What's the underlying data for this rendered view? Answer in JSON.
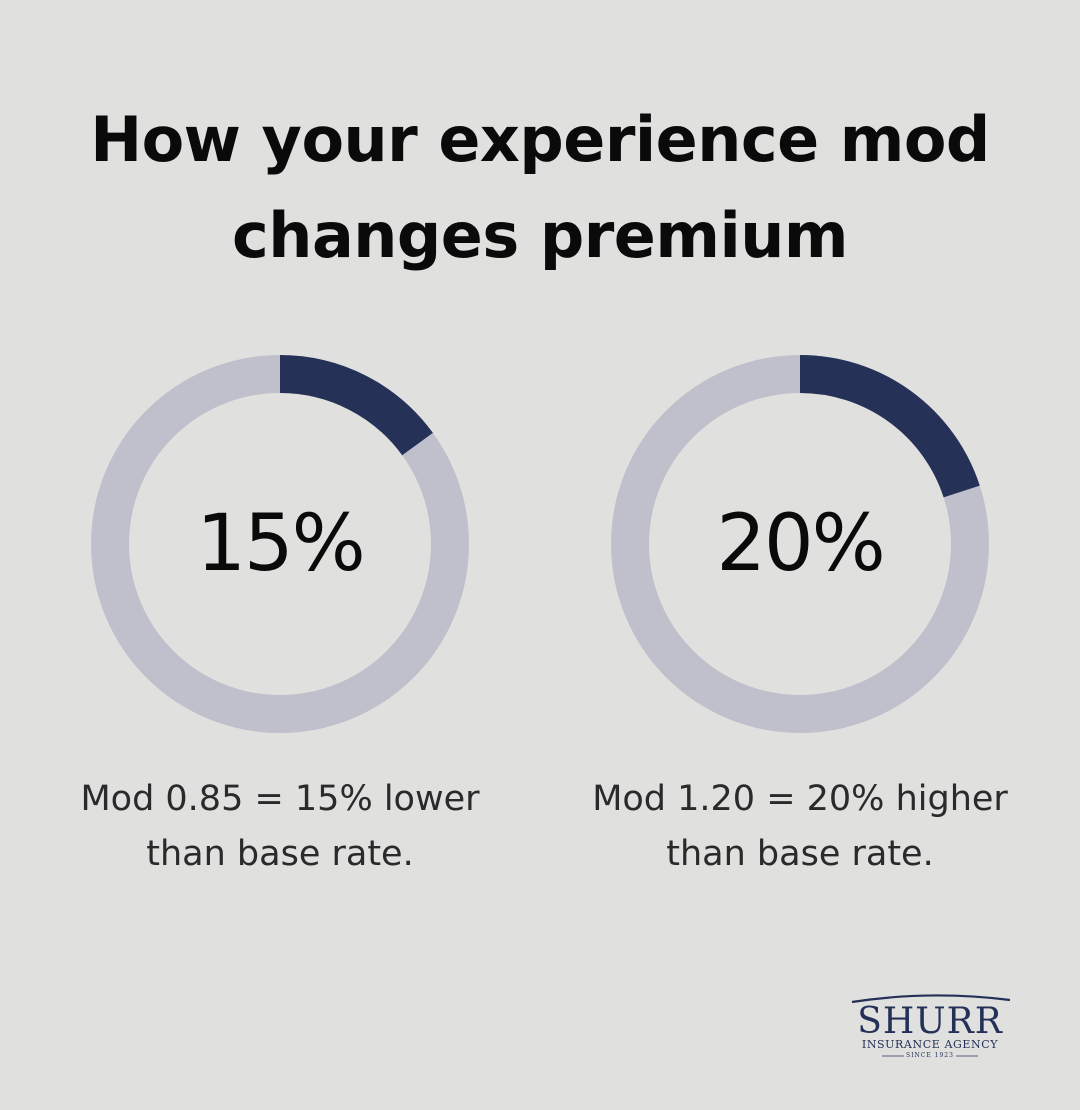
{
  "title": {
    "line1": "How your experience mod",
    "line2": "changes premium"
  },
  "chart_data": [
    {
      "type": "pie",
      "value": 15,
      "label": "15%",
      "caption_line1": "Mod 0.85 = 15% lower",
      "caption_line2": "than base rate.",
      "ylim": [
        0,
        100
      ]
    },
    {
      "type": "pie",
      "value": 20,
      "label": "20%",
      "caption_line1": "Mod 1.20 = 20% higher",
      "caption_line2": "than base rate.",
      "ylim": [
        0,
        100
      ]
    }
  ],
  "colors": {
    "background": "#e0e1df",
    "donut_filled": "#253157",
    "donut_track": "#bfc0cb"
  },
  "logo": {
    "name": "SHURR",
    "subtitle": "INSURANCE AGENCY",
    "since": "SINCE 1923"
  }
}
